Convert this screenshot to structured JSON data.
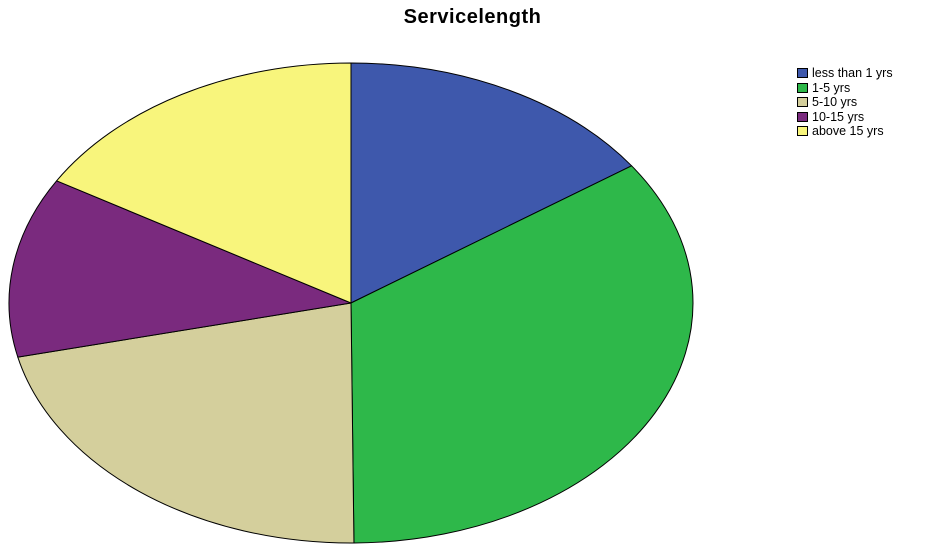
{
  "chart_data": {
    "type": "pie",
    "title": "Servicelength",
    "categories": [
      "less than 1 yrs",
      "1-5 yrs",
      "5-10 yrs",
      "10-15 yrs",
      "above 15 yrs"
    ],
    "values": [
      16.8,
      37.9,
      23.6,
      13.3,
      18.1
    ],
    "colors": [
      "#3e58ac",
      "#2eb84a",
      "#d4cf9c",
      "#7a2a7e",
      "#f8f57c"
    ],
    "start_angle_deg": 0,
    "direction": "clockwise",
    "legend_position": "top-right"
  }
}
